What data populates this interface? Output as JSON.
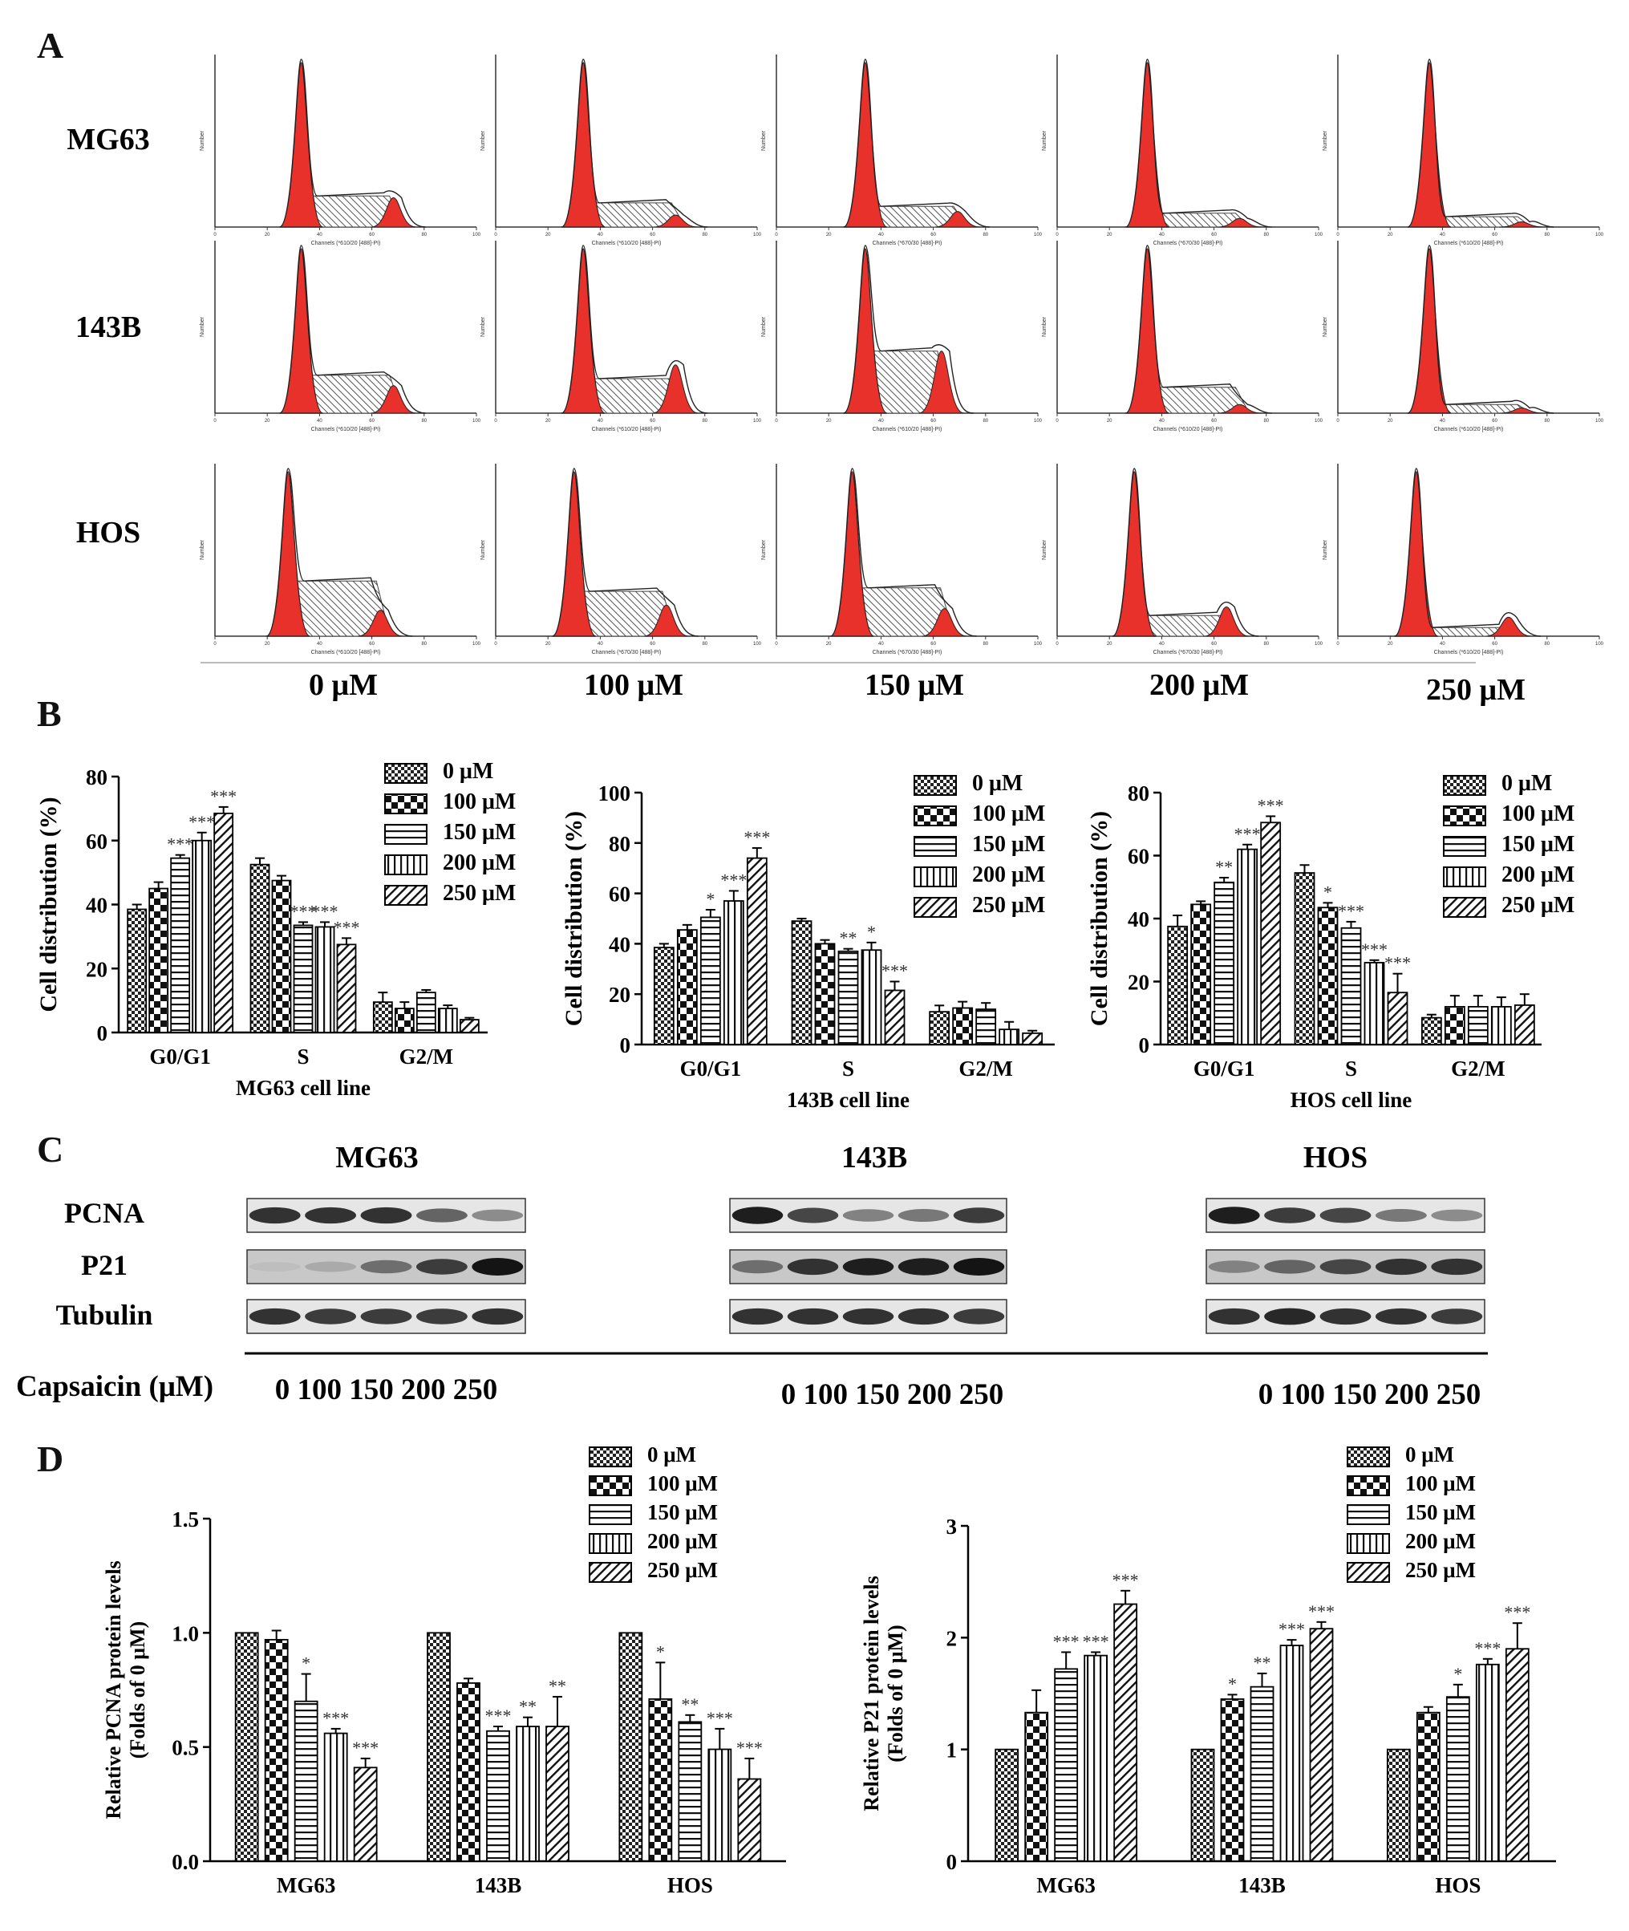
{
  "panels": {
    "A": "A",
    "B": "B",
    "C": "C",
    "D": "D"
  },
  "concentrations": [
    "0 μM",
    "100 μM",
    "150 μM",
    "200 μM",
    "250 μM"
  ],
  "colors": {
    "red": "#e8312a",
    "ink": "#111111",
    "hatch": "#555555"
  },
  "panel_a": {
    "rows": [
      "MG63",
      "143B",
      "HOS"
    ],
    "ylabel": "Number",
    "xticks": [
      "0",
      "20",
      "40",
      "60",
      "80",
      "100"
    ],
    "xlabels": [
      [
        "Channels (*610/20 [488]-PI)",
        "Channels (*610/20 [488]-PI)",
        "Channels (*670/30 [488]-PI)",
        "Channels (*670/30 [488]-PI)",
        "Channels (*610/20 [488]-PI)"
      ],
      [
        "Channels (*610/20 [488]-PI)",
        "Channels (*610/20 [488]-PI)",
        "Channels (*610/20 [488]-PI)",
        "Channels (*610/20 [488]-PI)",
        "Channels (*610/20 [488]-PI)"
      ],
      [
        "Channels (*610/20 [488]-PI)",
        "Channels (*670/30 [488]-PI)",
        "Channels (*670/30 [488]-PI)",
        "Channels (*670/30 [488]-PI)",
        "Channels (*610/20 [488]-PI)"
      ]
    ],
    "g2_scale": [
      [
        0.17,
        0.07,
        0.09,
        0.05,
        0.03
      ],
      [
        0.16,
        0.28,
        0.36,
        0.05,
        0.03
      ],
      [
        0.15,
        0.18,
        0.16,
        0.17,
        0.11
      ]
    ],
    "s_scale": [
      [
        0.18,
        0.14,
        0.12,
        0.08,
        0.06
      ],
      [
        0.22,
        0.2,
        0.36,
        0.15,
        0.05
      ],
      [
        0.32,
        0.26,
        0.28,
        0.12,
        0.05
      ]
    ]
  },
  "chart_data": [
    {
      "id": "B1",
      "type": "bar",
      "title": "MG63 cell line",
      "ylabel": "Cell distribution (%)",
      "xlabel": "MG63 cell line",
      "categories": [
        "G0/G1",
        "S",
        "G2/M"
      ],
      "ylim": [
        0,
        80
      ],
      "yticks": [
        "0",
        "20",
        "40",
        "60",
        "80"
      ],
      "series": [
        {
          "name": "0 μM",
          "values": [
            38.5,
            52.5,
            9.5
          ],
          "errors": [
            1.5,
            2,
            3
          ]
        },
        {
          "name": "100 μM",
          "values": [
            45,
            47.5,
            7.5
          ],
          "errors": [
            2,
            1.5,
            2
          ]
        },
        {
          "name": "150 μM",
          "values": [
            54.5,
            33.5,
            12.5
          ],
          "errors": [
            1,
            1,
            0.8
          ]
        },
        {
          "name": "200 μM",
          "values": [
            60,
            33,
            7.5
          ],
          "errors": [
            2.5,
            1.5,
            1
          ]
        },
        {
          "name": "250 μM",
          "values": [
            68.5,
            27.5,
            4
          ],
          "errors": [
            2,
            2,
            0.6
          ]
        }
      ],
      "stars": [
        [
          "",
          "",
          ""
        ],
        [
          "",
          "",
          ""
        ],
        [
          "***",
          "***",
          ""
        ],
        [
          "***",
          "***",
          ""
        ],
        [
          "***",
          "***",
          ""
        ]
      ]
    },
    {
      "id": "B2",
      "type": "bar",
      "title": "143B cell line",
      "ylabel": "Cell distribution (%)",
      "xlabel": "143B cell line",
      "categories": [
        "G0/G1",
        "S",
        "G2/M"
      ],
      "ylim": [
        0,
        100
      ],
      "yticks": [
        "0",
        "20",
        "40",
        "60",
        "80",
        "100"
      ],
      "series": [
        {
          "name": "0 μM",
          "values": [
            38.5,
            49,
            13
          ],
          "errors": [
            1.5,
            1,
            2.5
          ]
        },
        {
          "name": "100 μM",
          "values": [
            45.5,
            40,
            14.5
          ],
          "errors": [
            2,
            1.5,
            2.5
          ]
        },
        {
          "name": "150 μM",
          "values": [
            50.5,
            37,
            14
          ],
          "errors": [
            3,
            1,
            2.5
          ]
        },
        {
          "name": "200 μM",
          "values": [
            57,
            37.5,
            6
          ],
          "errors": [
            4,
            3,
            3
          ]
        },
        {
          "name": "250 μM",
          "values": [
            74,
            21.5,
            4.5
          ],
          "errors": [
            4,
            3.5,
            1
          ]
        }
      ],
      "stars": [
        [
          "",
          "",
          ""
        ],
        [
          "",
          "",
          ""
        ],
        [
          "*",
          "**",
          ""
        ],
        [
          "***",
          "*",
          ""
        ],
        [
          "***",
          "***",
          ""
        ]
      ]
    },
    {
      "id": "B3",
      "type": "bar",
      "title": "HOS cell line",
      "ylabel": "Cell distribution (%)",
      "xlabel": "HOS cell line",
      "categories": [
        "G0/G1",
        "S",
        "G2/M"
      ],
      "ylim": [
        0,
        80
      ],
      "yticks": [
        "0",
        "20",
        "40",
        "60",
        "80"
      ],
      "series": [
        {
          "name": "0 μM",
          "values": [
            37.5,
            54.5,
            8.5
          ],
          "errors": [
            3.5,
            2.5,
            1
          ]
        },
        {
          "name": "100 μM",
          "values": [
            44.5,
            43.5,
            12
          ],
          "errors": [
            1,
            1.5,
            3.5
          ]
        },
        {
          "name": "150 μM",
          "values": [
            51.5,
            37,
            12
          ],
          "errors": [
            1.5,
            2,
            3.5
          ]
        },
        {
          "name": "200 μM",
          "values": [
            62,
            26,
            12
          ],
          "errors": [
            1.5,
            0.8,
            3
          ]
        },
        {
          "name": "250 μM",
          "values": [
            70.5,
            16.5,
            12.5
          ],
          "errors": [
            2,
            6,
            3.5
          ]
        }
      ],
      "stars": [
        [
          "",
          "",
          ""
        ],
        [
          "",
          "*",
          ""
        ],
        [
          "**",
          "***",
          ""
        ],
        [
          "***",
          "***",
          ""
        ],
        [
          "***",
          "***",
          ""
        ]
      ]
    },
    {
      "id": "D1",
      "type": "bar",
      "ylabel": "Relative PCNA protein levels",
      "ylabel2": "(Folds of 0 μM)",
      "categories": [
        "MG63",
        "143B",
        "HOS"
      ],
      "ylim": [
        0,
        1.5
      ],
      "yticks": [
        "0.0",
        "0.5",
        "1.0",
        "1.5"
      ],
      "series": [
        {
          "name": "0 μM",
          "values": [
            1.0,
            1.0,
            1.0
          ],
          "errors": [
            0,
            0,
            0
          ]
        },
        {
          "name": "100 μM",
          "values": [
            0.97,
            0.78,
            0.71
          ],
          "errors": [
            0.04,
            0.02,
            0.16
          ]
        },
        {
          "name": "150 μM",
          "values": [
            0.7,
            0.57,
            0.61
          ],
          "errors": [
            0.12,
            0.02,
            0.03
          ]
        },
        {
          "name": "200 μM",
          "values": [
            0.56,
            0.59,
            0.49
          ],
          "errors": [
            0.02,
            0.04,
            0.09
          ]
        },
        {
          "name": "250 μM",
          "values": [
            0.41,
            0.59,
            0.36
          ],
          "errors": [
            0.04,
            0.13,
            0.09
          ]
        }
      ],
      "stars": [
        [
          "",
          "",
          ""
        ],
        [
          "",
          "",
          "*"
        ],
        [
          "*",
          "***",
          "**"
        ],
        [
          "***",
          "**",
          "***"
        ],
        [
          "***",
          "**",
          "***"
        ]
      ]
    },
    {
      "id": "D2",
      "type": "bar",
      "ylabel": "Relative P21 protein levels",
      "ylabel2": "(Folds of 0 μM)",
      "categories": [
        "MG63",
        "143B",
        "HOS"
      ],
      "ylim": [
        0,
        3
      ],
      "yticks": [
        "0",
        "1",
        "2",
        "3"
      ],
      "series": [
        {
          "name": "0 μM",
          "values": [
            1.0,
            1.0,
            1.0
          ],
          "errors": [
            0,
            0,
            0
          ]
        },
        {
          "name": "100 μM",
          "values": [
            1.33,
            1.45,
            1.33
          ],
          "errors": [
            0.2,
            0.04,
            0.05
          ]
        },
        {
          "name": "150 μM",
          "values": [
            1.72,
            1.56,
            1.47
          ],
          "errors": [
            0.15,
            0.12,
            0.11
          ]
        },
        {
          "name": "200 μM",
          "values": [
            1.84,
            1.93,
            1.76
          ],
          "errors": [
            0.03,
            0.05,
            0.05
          ]
        },
        {
          "name": "250 μM",
          "values": [
            2.3,
            2.08,
            1.9
          ],
          "errors": [
            0.12,
            0.06,
            0.23
          ]
        }
      ],
      "stars": [
        [
          "",
          "",
          ""
        ],
        [
          "",
          "*",
          ""
        ],
        [
          "***",
          "**",
          "*"
        ],
        [
          "***",
          "***",
          "***"
        ],
        [
          "***",
          "***",
          "***"
        ]
      ]
    }
  ],
  "panel_c": {
    "lines": [
      "MG63",
      "143B",
      "HOS"
    ],
    "proteins": [
      "PCNA",
      "P21",
      "Tubulin"
    ],
    "treatment_label": "Capsaicin (μM)",
    "lane_labels": "0 100 150 200 250",
    "intensity": {
      "PCNA": [
        [
          0.85,
          0.85,
          0.85,
          0.6,
          0.4
        ],
        [
          0.95,
          0.75,
          0.45,
          0.5,
          0.8
        ],
        [
          0.95,
          0.8,
          0.75,
          0.5,
          0.4
        ]
      ],
      "P21": [
        [
          0.15,
          0.25,
          0.55,
          0.8,
          1.0
        ],
        [
          0.55,
          0.85,
          0.95,
          0.95,
          1.0
        ],
        [
          0.45,
          0.6,
          0.75,
          0.85,
          0.85
        ]
      ],
      "Tubulin": [
        [
          0.85,
          0.8,
          0.8,
          0.8,
          0.85
        ],
        [
          0.85,
          0.85,
          0.85,
          0.85,
          0.8
        ],
        [
          0.85,
          0.9,
          0.85,
          0.85,
          0.8
        ]
      ]
    }
  }
}
